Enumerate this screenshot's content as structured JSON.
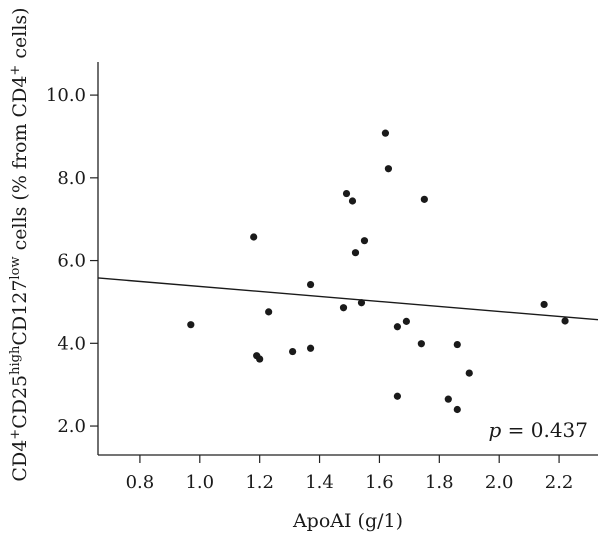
{
  "chart_data": {
    "type": "scatter",
    "xlabel": "ApoAI (g/1)",
    "ylabel": {
      "segments": [
        {
          "t": "CD4",
          "sup": false
        },
        {
          "t": "+",
          "sup": true
        },
        {
          "t": "CD25",
          "sup": false
        },
        {
          "t": "high",
          "sup": true
        },
        {
          "t": "CD127",
          "sup": false
        },
        {
          "t": "low",
          "sup": true
        },
        {
          "t": " cells (% from CD4",
          "sup": false
        },
        {
          "t": "+",
          "sup": true
        },
        {
          "t": " cells)",
          "sup": false
        }
      ]
    },
    "x_ticks": [
      "0.8",
      "1.0",
      "1.2",
      "1.4",
      "1.6",
      "1.8",
      "2.0",
      "2.2"
    ],
    "y_ticks": [
      "2.0",
      "4.0",
      "6.0",
      "8.0",
      "10.0"
    ],
    "xlim": [
      0.66,
      2.33
    ],
    "ylim": [
      1.3,
      10.8
    ],
    "grid": false,
    "points": [
      {
        "x": 0.97,
        "y": 4.45
      },
      {
        "x": 1.18,
        "y": 6.57
      },
      {
        "x": 1.19,
        "y": 3.7
      },
      {
        "x": 1.2,
        "y": 3.62
      },
      {
        "x": 1.23,
        "y": 4.76
      },
      {
        "x": 1.31,
        "y": 3.8
      },
      {
        "x": 1.37,
        "y": 5.42
      },
      {
        "x": 1.37,
        "y": 3.88
      },
      {
        "x": 1.48,
        "y": 4.86
      },
      {
        "x": 1.49,
        "y": 7.62
      },
      {
        "x": 1.51,
        "y": 7.44
      },
      {
        "x": 1.52,
        "y": 6.19
      },
      {
        "x": 1.54,
        "y": 4.98
      },
      {
        "x": 1.55,
        "y": 6.48
      },
      {
        "x": 1.62,
        "y": 9.08
      },
      {
        "x": 1.63,
        "y": 8.22
      },
      {
        "x": 1.66,
        "y": 4.4
      },
      {
        "x": 1.66,
        "y": 2.72
      },
      {
        "x": 1.69,
        "y": 4.53
      },
      {
        "x": 1.74,
        "y": 3.99
      },
      {
        "x": 1.75,
        "y": 7.48
      },
      {
        "x": 1.83,
        "y": 2.65
      },
      {
        "x": 1.86,
        "y": 3.97
      },
      {
        "x": 1.86,
        "y": 2.4
      },
      {
        "x": 1.9,
        "y": 3.28
      },
      {
        "x": 2.15,
        "y": 4.94
      },
      {
        "x": 2.22,
        "y": 4.54
      }
    ],
    "regression_line": {
      "x": [
        0.66,
        2.33
      ],
      "y": [
        5.58,
        4.57
      ]
    },
    "annotation": {
      "italic": "p",
      "rest": " = 0.437"
    }
  }
}
